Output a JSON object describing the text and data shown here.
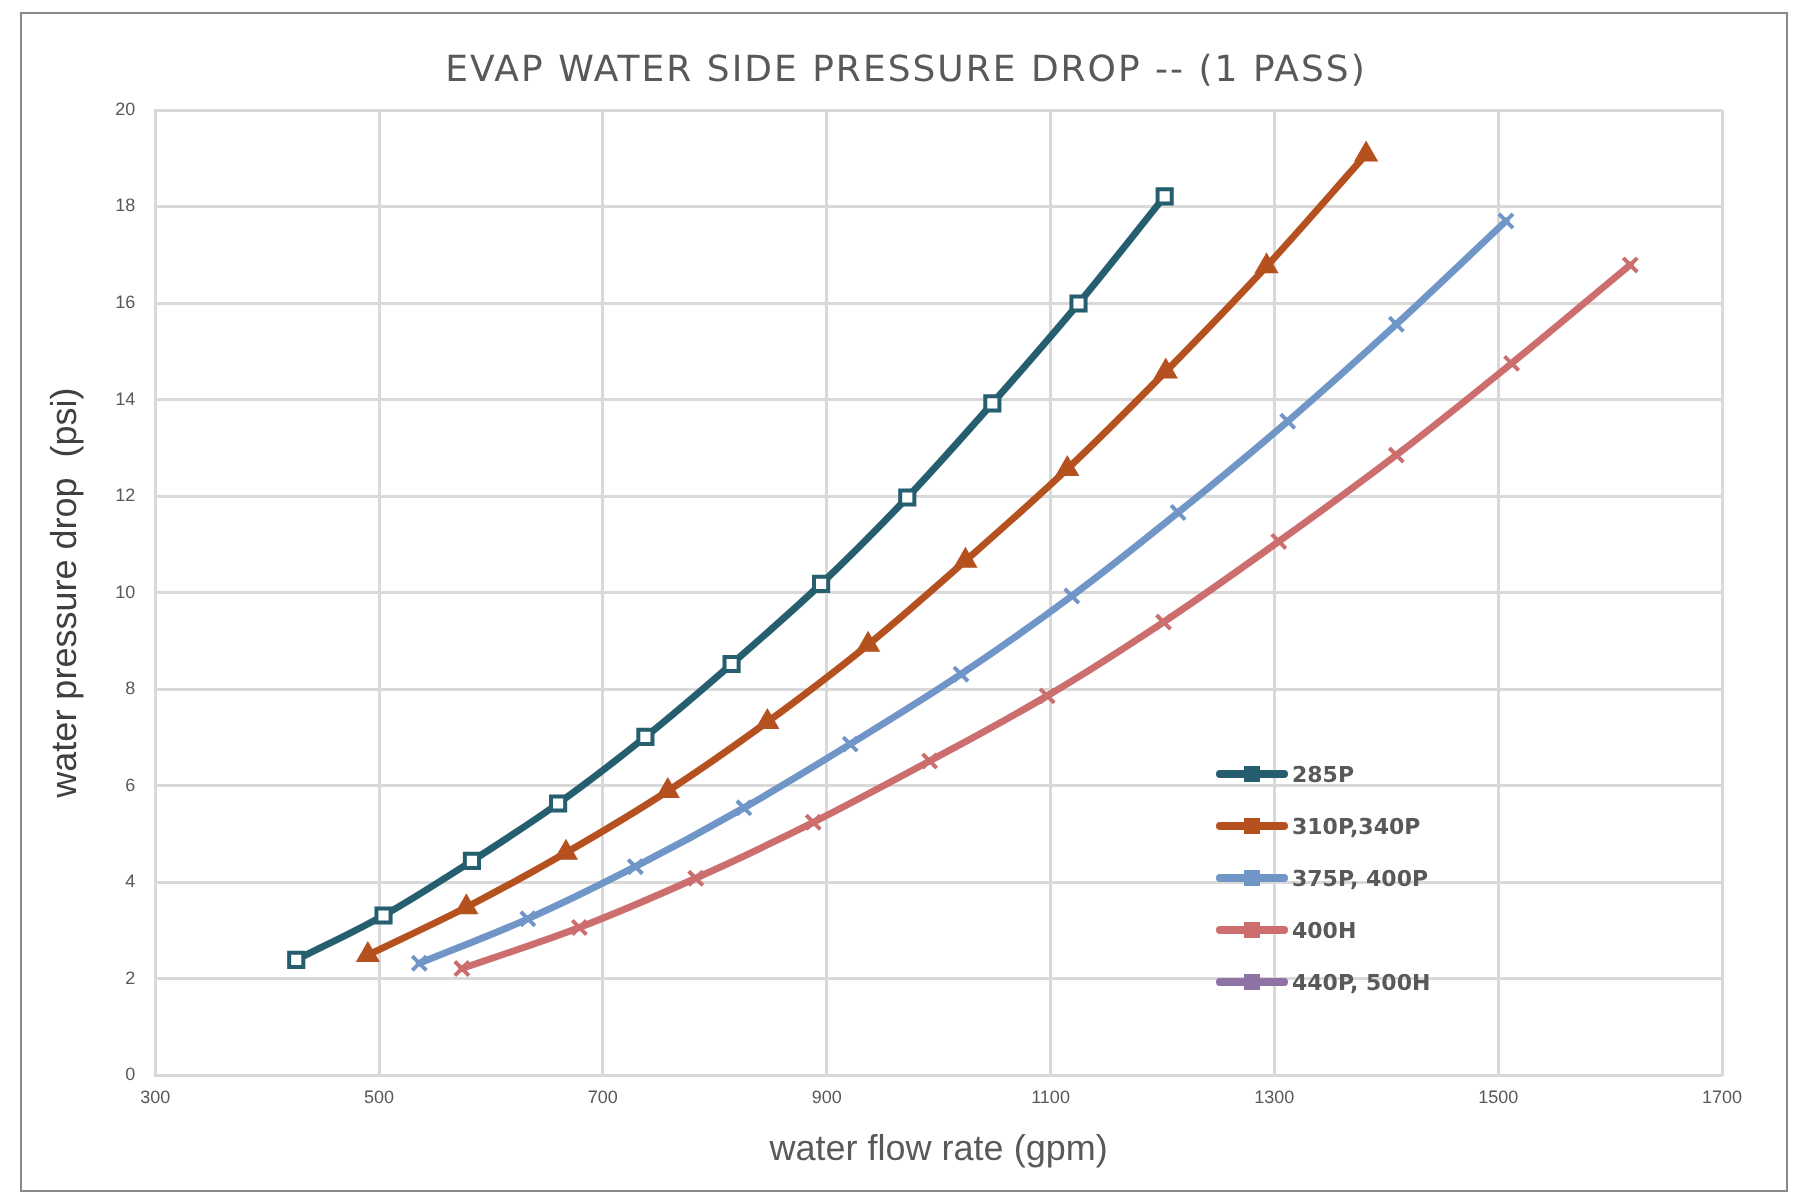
{
  "chart_data": {
    "type": "line",
    "title": "EVAP WATER SIDE PRESSURE DROP -- (1 PASS)",
    "xlabel": "water flow rate (gpm)",
    "ylabel": "water pressure drop  (psi)",
    "xlim": [
      300,
      1700
    ],
    "xticks": [
      300,
      500,
      700,
      900,
      1100,
      1300,
      1500,
      1700
    ],
    "ylim": [
      0,
      20
    ],
    "yticks": [
      0,
      2,
      4,
      6,
      8,
      10,
      12,
      14,
      16,
      18,
      20
    ],
    "grid": true,
    "legend": "bottom right",
    "series": [
      {
        "name": "285P",
        "color": "#255e6e",
        "marker": "square",
        "x": [
          426,
          504,
          583,
          660,
          738,
          815,
          895,
          972,
          1048,
          1125,
          1202
        ],
        "values": [
          2.39,
          3.31,
          4.44,
          5.63,
          7.01,
          8.52,
          10.18,
          11.97,
          13.92,
          15.99,
          18.21
        ]
      },
      {
        "name": "310P,340P",
        "color": "#b5501f",
        "marker": "triangle",
        "x": [
          490,
          578,
          667,
          758,
          847,
          937,
          1024,
          1115,
          1203,
          1293,
          1382
        ],
        "values": [
          2.49,
          3.48,
          4.61,
          5.89,
          7.32,
          8.92,
          10.66,
          12.56,
          14.58,
          16.76,
          19.08
        ]
      },
      {
        "name": "375P, 400P",
        "color": "#7096c8",
        "marker": "cross",
        "x": [
          536,
          633,
          729,
          826,
          921,
          1020,
          1119,
          1214,
          1312,
          1409,
          1507
        ],
        "values": [
          2.32,
          3.24,
          4.32,
          5.54,
          6.86,
          8.31,
          9.93,
          11.66,
          13.55,
          15.56,
          17.7
        ]
      },
      {
        "name": "400H",
        "color": "#cc6e6e",
        "marker": "cross",
        "x": [
          574,
          679,
          783,
          888,
          992,
          1097,
          1201,
          1304,
          1409,
          1512,
          1618
        ],
        "values": [
          2.21,
          3.06,
          4.08,
          5.24,
          6.51,
          7.86,
          9.39,
          11.06,
          12.85,
          14.75,
          16.79
        ]
      },
      {
        "name": "440P, 500H",
        "color": "#8e72a6"
      }
    ]
  }
}
